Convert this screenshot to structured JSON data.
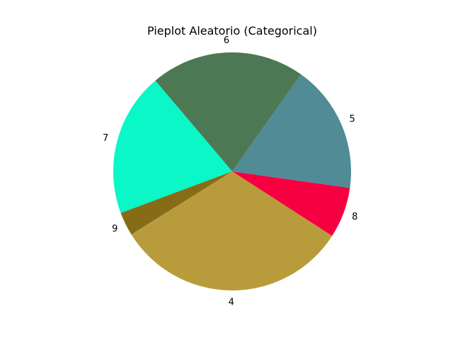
{
  "chart_data": {
    "type": "pie",
    "title": "Pieplot Aleatorio (Categorical)",
    "slices": [
      {
        "label": "4",
        "value": 32.0,
        "color": "#b89c3b"
      },
      {
        "label": "8",
        "value": 6.9,
        "color": "#f70041"
      },
      {
        "label": "5",
        "value": 17.4,
        "color": "#508b96"
      },
      {
        "label": "6",
        "value": 21.0,
        "color": "#4c7953"
      },
      {
        "label": "7",
        "value": 19.5,
        "color": "#0af7c8"
      },
      {
        "label": "9",
        "value": 3.2,
        "color": "#866c16"
      }
    ],
    "start_label": "4",
    "direction": "counterclockwise",
    "legend": "none"
  }
}
